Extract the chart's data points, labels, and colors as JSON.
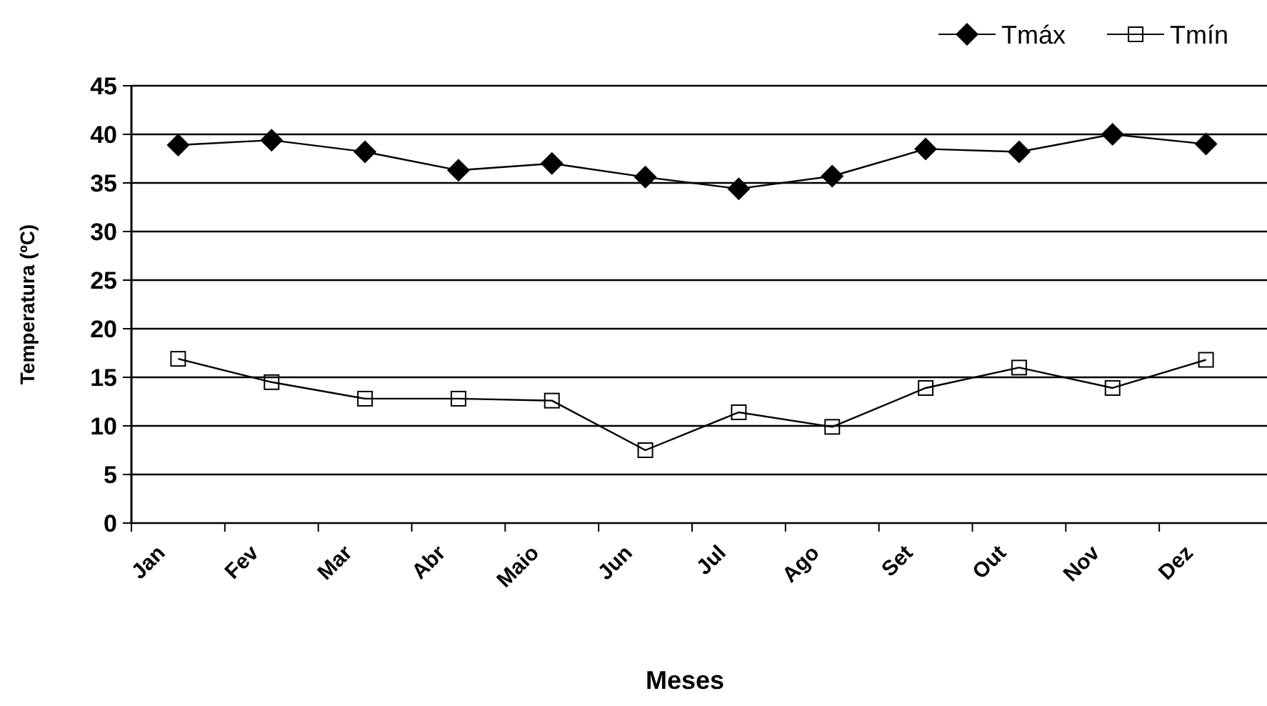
{
  "chart_data": {
    "type": "line",
    "xlabel": "Meses",
    "ylabel": "Temperatura (ºC)",
    "categories": [
      "Jan",
      "Fev",
      "Mar",
      "Abr",
      "Maio",
      "Jun",
      "Jul",
      "Ago",
      "Set",
      "Out",
      "Nov",
      "Dez"
    ],
    "series": [
      {
        "name": "Tmáx",
        "color": "#000000",
        "marker": "diamond",
        "values": [
          38.9,
          39.4,
          38.2,
          36.3,
          37.0,
          35.6,
          34.4,
          35.7,
          38.5,
          38.2,
          40.0,
          39.0
        ]
      },
      {
        "name": "Tmín",
        "color": "#000000",
        "marker": "square",
        "values": [
          16.9,
          14.5,
          12.8,
          12.8,
          12.6,
          7.5,
          11.4,
          9.9,
          13.9,
          16.0,
          13.9,
          16.8
        ]
      }
    ],
    "ylim": [
      0,
      45
    ],
    "yticks": [
      0,
      5,
      10,
      15,
      20,
      25,
      30,
      35,
      40,
      45
    ],
    "grid": "y",
    "legend": "top right",
    "line_style": "solid"
  }
}
